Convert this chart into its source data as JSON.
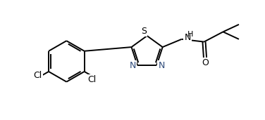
{
  "bg_color": "#ffffff",
  "line_color": "#000000",
  "N_color": "#2e4a7a",
  "figsize": [
    3.76,
    1.71
  ],
  "dpi": 100,
  "xlim": [
    0,
    10
  ],
  "ylim": [
    0,
    4.5
  ],
  "lw": 1.4
}
